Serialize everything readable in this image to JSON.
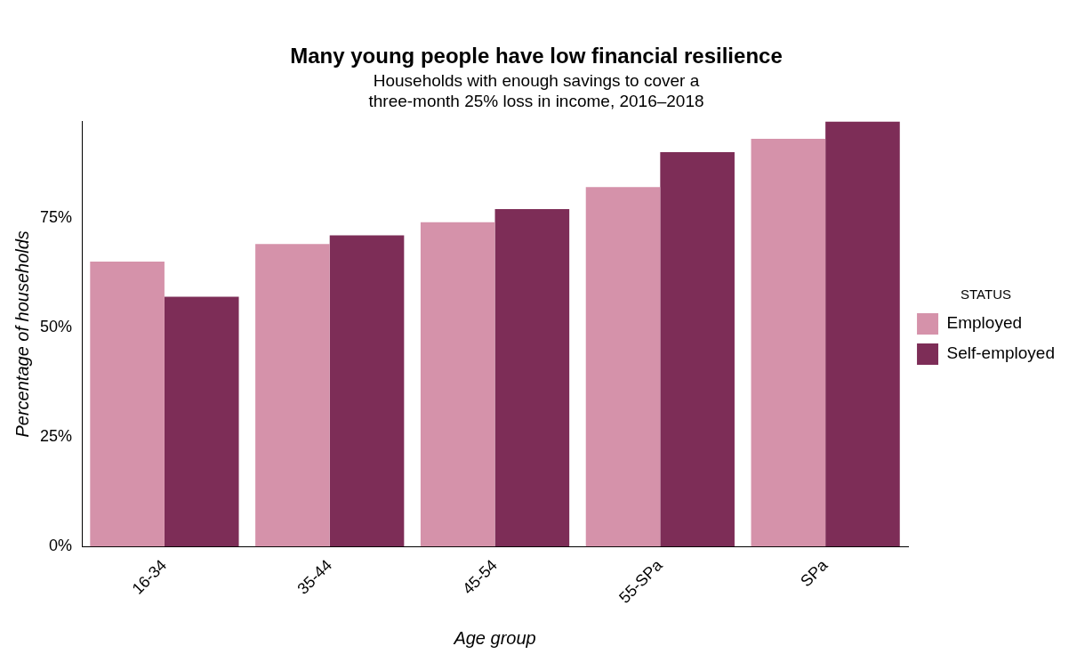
{
  "chart_data": {
    "type": "bar",
    "title": "Many young people have low financial resilience",
    "subtitle": "Households with enough savings to cover a\nthree-month 25% loss in income, 2016–2018",
    "xlabel": "Age group",
    "ylabel": "Percentage of households",
    "legend_title": "STATUS",
    "legend": "right",
    "grid": false,
    "categories": [
      "16-34",
      "35-44",
      "45-54",
      "55-SPa",
      "SPa"
    ],
    "series": [
      {
        "name": "Employed",
        "color": "#d592aa",
        "values": [
          65,
          69,
          74,
          82,
          93
        ]
      },
      {
        "name": "Self-employed",
        "color": "#7d2d57",
        "values": [
          57,
          71,
          77,
          90,
          97
        ]
      }
    ],
    "ylim": [
      0,
      97
    ],
    "yticks": [
      {
        "value": 0,
        "label": "0%"
      },
      {
        "value": 25,
        "label": "25%"
      },
      {
        "value": 50,
        "label": "50%"
      },
      {
        "value": 75,
        "label": "75%"
      }
    ]
  }
}
